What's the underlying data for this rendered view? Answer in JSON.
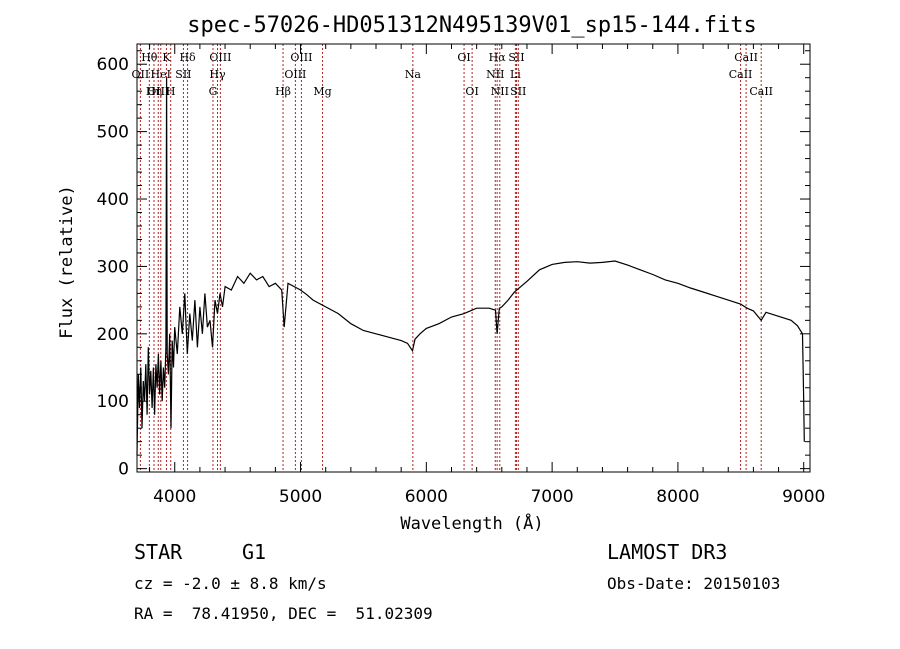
{
  "chart_data": {
    "type": "line",
    "title": "spec-57026-HD051312N495139V01_sp15-144.fits",
    "xlabel": "Wavelength (Å)",
    "ylabel": "Flux (relative)",
    "xlim": [
      3700,
      9050
    ],
    "ylim": [
      -5,
      630
    ],
    "xticks": [
      4000,
      5000,
      6000,
      7000,
      8000,
      9000
    ],
    "yticks": [
      0,
      100,
      200,
      300,
      400,
      500,
      600
    ],
    "grid": false,
    "line_color": "#000000",
    "marker_color": "#b22222",
    "series": [
      {
        "x": [
          3700,
          3710,
          3720,
          3730,
          3740,
          3750,
          3760,
          3770,
          3780,
          3790,
          3800,
          3810,
          3820,
          3830,
          3840,
          3850,
          3860,
          3870,
          3880,
          3890,
          3900,
          3910,
          3920,
          3930,
          3935,
          3940,
          3950,
          3960,
          3970,
          3980,
          3990,
          4000,
          4020,
          4040,
          4060,
          4080,
          4100,
          4120,
          4140,
          4160,
          4180,
          4200,
          4220,
          4240,
          4260,
          4280,
          4300,
          4320,
          4340,
          4360,
          4380,
          4400,
          4450,
          4500,
          4550,
          4600,
          4650,
          4700,
          4750,
          4800,
          4850,
          4870,
          4900,
          4950,
          5000,
          5050,
          5100,
          5150,
          5200,
          5300,
          5400,
          5500,
          5600,
          5700,
          5800,
          5850,
          5890,
          5910,
          5950,
          6000,
          6100,
          6200,
          6300,
          6400,
          6500,
          6550,
          6563,
          6580,
          6600,
          6650,
          6700,
          6800,
          6900,
          7000,
          7100,
          7200,
          7300,
          7400,
          7500,
          7600,
          7700,
          7800,
          7900,
          8000,
          8100,
          8200,
          8300,
          8400,
          8500,
          8550,
          8600,
          8662,
          8700,
          8800,
          8900,
          8950,
          8990,
          9000,
          9005
        ],
        "y": [
          20,
          140,
          90,
          150,
          60,
          130,
          100,
          155,
          80,
          180,
          110,
          145,
          90,
          150,
          80,
          155,
          120,
          170,
          110,
          160,
          100,
          150,
          120,
          180,
          580,
          170,
          140,
          200,
          60,
          190,
          150,
          210,
          170,
          240,
          200,
          260,
          170,
          230,
          190,
          250,
          180,
          240,
          200,
          260,
          210,
          220,
          180,
          250,
          230,
          260,
          240,
          270,
          265,
          285,
          275,
          290,
          280,
          285,
          270,
          275,
          265,
          210,
          275,
          270,
          265,
          258,
          250,
          245,
          240,
          230,
          215,
          205,
          200,
          195,
          190,
          186,
          175,
          192,
          200,
          208,
          215,
          225,
          230,
          238,
          238,
          235,
          200,
          238,
          240,
          250,
          262,
          278,
          295,
          303,
          306,
          307,
          305,
          306,
          308,
          302,
          295,
          288,
          280,
          275,
          268,
          262,
          256,
          250,
          244,
          238,
          234,
          220,
          232,
          226,
          220,
          212,
          200,
          100,
          40
        ]
      }
    ],
    "spectral_lines": [
      {
        "label": "Hθ",
        "wavelength": 3798,
        "row": 1
      },
      {
        "label": "OII",
        "wavelength": 3727,
        "row": 2
      },
      {
        "label": "OIII",
        "wavelength": 3869,
        "row": 3
      },
      {
        "label": "Hη",
        "wavelength": 3835,
        "row": 3
      },
      {
        "label": "HeI",
        "wavelength": 3889,
        "row": 2
      },
      {
        "label": "K",
        "wavelength": 3934,
        "row": 1
      },
      {
        "label": "H",
        "wavelength": 3968,
        "row": 3
      },
      {
        "label": "SII",
        "wavelength": 4069,
        "row": 2
      },
      {
        "label": "Hδ",
        "wavelength": 4102,
        "row": 1
      },
      {
        "label": "OIII",
        "wavelength": 4363,
        "row": 1
      },
      {
        "label": "Hγ",
        "wavelength": 4340,
        "row": 2
      },
      {
        "label": "G",
        "wavelength": 4304,
        "row": 3
      },
      {
        "label": "Hβ",
        "wavelength": 4861,
        "row": 3
      },
      {
        "label": "OIII",
        "wavelength": 5007,
        "row": 1
      },
      {
        "label": "OIII",
        "wavelength": 4959,
        "row": 2
      },
      {
        "label": "Mg",
        "wavelength": 5175,
        "row": 3
      },
      {
        "label": "Na",
        "wavelength": 5893,
        "row": 2
      },
      {
        "label": "OI",
        "wavelength": 6300,
        "row": 1
      },
      {
        "label": "OI",
        "wavelength": 6364,
        "row": 3
      },
      {
        "label": "Hα",
        "wavelength": 6563,
        "row": 1
      },
      {
        "label": "NII",
        "wavelength": 6548,
        "row": 2
      },
      {
        "label": "NII",
        "wavelength": 6584,
        "row": 3
      },
      {
        "label": "SII",
        "wavelength": 6717,
        "row": 1
      },
      {
        "label": "Li",
        "wavelength": 6708,
        "row": 2
      },
      {
        "label": "SII",
        "wavelength": 6731,
        "row": 3
      },
      {
        "label": "CaII",
        "wavelength": 8542,
        "row": 1
      },
      {
        "label": "CaII",
        "wavelength": 8498,
        "row": 2
      },
      {
        "label": "CaII",
        "wavelength": 8662,
        "row": 3
      }
    ]
  },
  "info": {
    "class_label": "STAR",
    "subclass": "G1",
    "survey": "LAMOST DR3",
    "cz": "cz = -2.0 ± 8.8 km/s",
    "obs_date": "Obs-Date: 20150103",
    "coords": "RA =  78.41950, DEC =  51.02309"
  }
}
